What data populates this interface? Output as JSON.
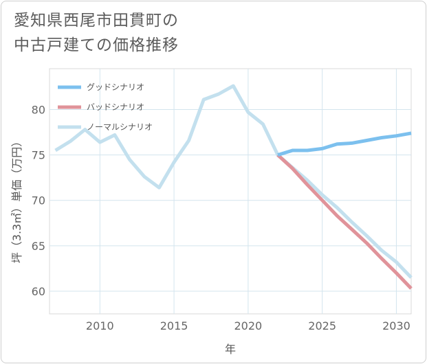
{
  "title_lines": [
    "愛知県西尾市田貫町の",
    "中古戸建ての価格推移"
  ],
  "chart_data": {
    "type": "line",
    "xlabel": "年",
    "ylabel": "坪（3.3㎡）単価（万円）",
    "xlim": [
      2006.6,
      2031
    ],
    "ylim": [
      57.5,
      84.5
    ],
    "x_ticks": [
      2010,
      2015,
      2020,
      2025,
      2030
    ],
    "y_ticks": [
      60,
      65,
      70,
      75,
      80
    ],
    "grid": true,
    "legend_position": "top-left",
    "series": [
      {
        "name": "グッドシナリオ",
        "color": "#7cc0ee",
        "x": [
          2022,
          2023,
          2024,
          2025,
          2026,
          2027,
          2028,
          2029,
          2030,
          2031
        ],
        "values": [
          75.0,
          75.5,
          75.5,
          75.7,
          76.2,
          76.3,
          76.6,
          76.9,
          77.1,
          77.4
        ]
      },
      {
        "name": "バッドシナリオ",
        "color": "#e0939a",
        "x": [
          2022,
          2023,
          2024,
          2025,
          2026,
          2027,
          2028,
          2029,
          2030,
          2031
        ],
        "values": [
          75.0,
          73.5,
          71.7,
          70.0,
          68.3,
          66.8,
          65.3,
          63.6,
          62.0,
          60.3
        ]
      },
      {
        "name": "ノーマルシナリオ",
        "color": "#c3e0ee",
        "x": [
          2007,
          2008,
          2009,
          2010,
          2011,
          2012,
          2013,
          2014,
          2015,
          2016,
          2017,
          2018,
          2019,
          2020,
          2021,
          2022,
          2023,
          2024,
          2025,
          2026,
          2027,
          2028,
          2029,
          2030,
          2031
        ],
        "values": [
          75.5,
          76.5,
          77.8,
          76.4,
          77.2,
          74.5,
          72.6,
          71.4,
          74.2,
          76.6,
          81.1,
          81.7,
          82.6,
          79.7,
          78.4,
          75.0,
          73.6,
          72.2,
          70.6,
          69.2,
          67.6,
          66.1,
          64.5,
          63.2,
          61.5
        ]
      }
    ]
  }
}
